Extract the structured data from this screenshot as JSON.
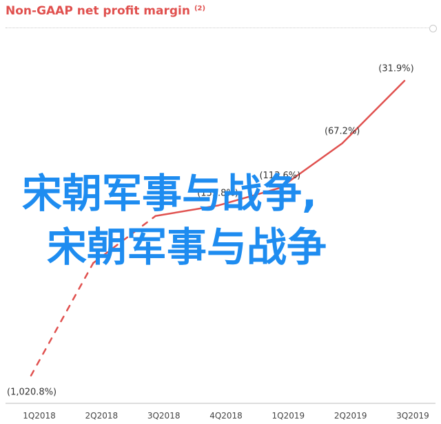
{
  "chart_data": {
    "type": "line",
    "title": "Non-GAAP net profit margin",
    "title_note": "(2)",
    "categories": [
      "1Q2018",
      "2Q2018",
      "3Q2018",
      "4Q2018",
      "1Q2019",
      "2Q2019",
      "3Q2019"
    ],
    "values": [
      -1020.8,
      -274.0,
      -158.0,
      -139.8,
      -113.6,
      -67.2,
      -31.9
    ],
    "data_labels": [
      "(1,020.8%)",
      "",
      "",
      "(139.8%)",
      "(113.6%)",
      "(67.2%)",
      "(31.9%)"
    ],
    "ylim": [
      -1100,
      0
    ],
    "y_scale": "symlog",
    "grid": false,
    "line_color": "#e0504e",
    "dashed_segments": [
      0,
      1
    ]
  },
  "overlay_text": {
    "line1": "宋朝军事与战争,",
    "line2": "宋朝军事与战争",
    "color": "#1e8cf0"
  }
}
